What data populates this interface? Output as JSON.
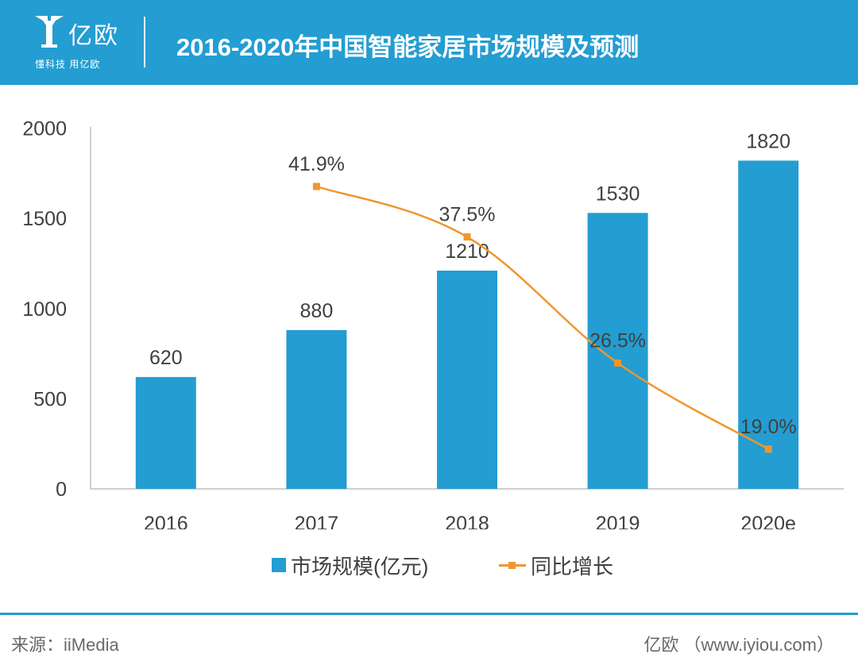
{
  "header": {
    "logo_name": "亿欧",
    "logo_slogan": "懂科技 用亿欧",
    "title": "2016-2020年中国智能家居市场规模及预测"
  },
  "colors": {
    "bar": "#239dd2",
    "line": "#f0962c",
    "header_bg": "#239dd2"
  },
  "chart_data": {
    "type": "bar",
    "categories": [
      "2016",
      "2017",
      "2018",
      "2019",
      "2020e"
    ],
    "ylim": [
      0,
      2000
    ],
    "yticks": [
      "0",
      "500",
      "1000",
      "1500",
      "2000"
    ],
    "grid": false,
    "legend_position": "bottom",
    "series": [
      {
        "name": "市场规模(亿元)",
        "type": "bar",
        "values": [
          620,
          880,
          1210,
          1530,
          1820
        ],
        "labels": [
          "620",
          "880",
          "1210",
          "1530",
          "1820"
        ]
      },
      {
        "name": "同比增长",
        "type": "line",
        "values": [
          null,
          41.9,
          37.5,
          26.5,
          19.0
        ],
        "labels": [
          "",
          "41.9%",
          "37.5%",
          "26.5%",
          "19.0%"
        ],
        "unit": "%"
      }
    ]
  },
  "footer": {
    "source": "来源：iiMedia",
    "brand": "亿欧 （www.iyiou.com）"
  }
}
